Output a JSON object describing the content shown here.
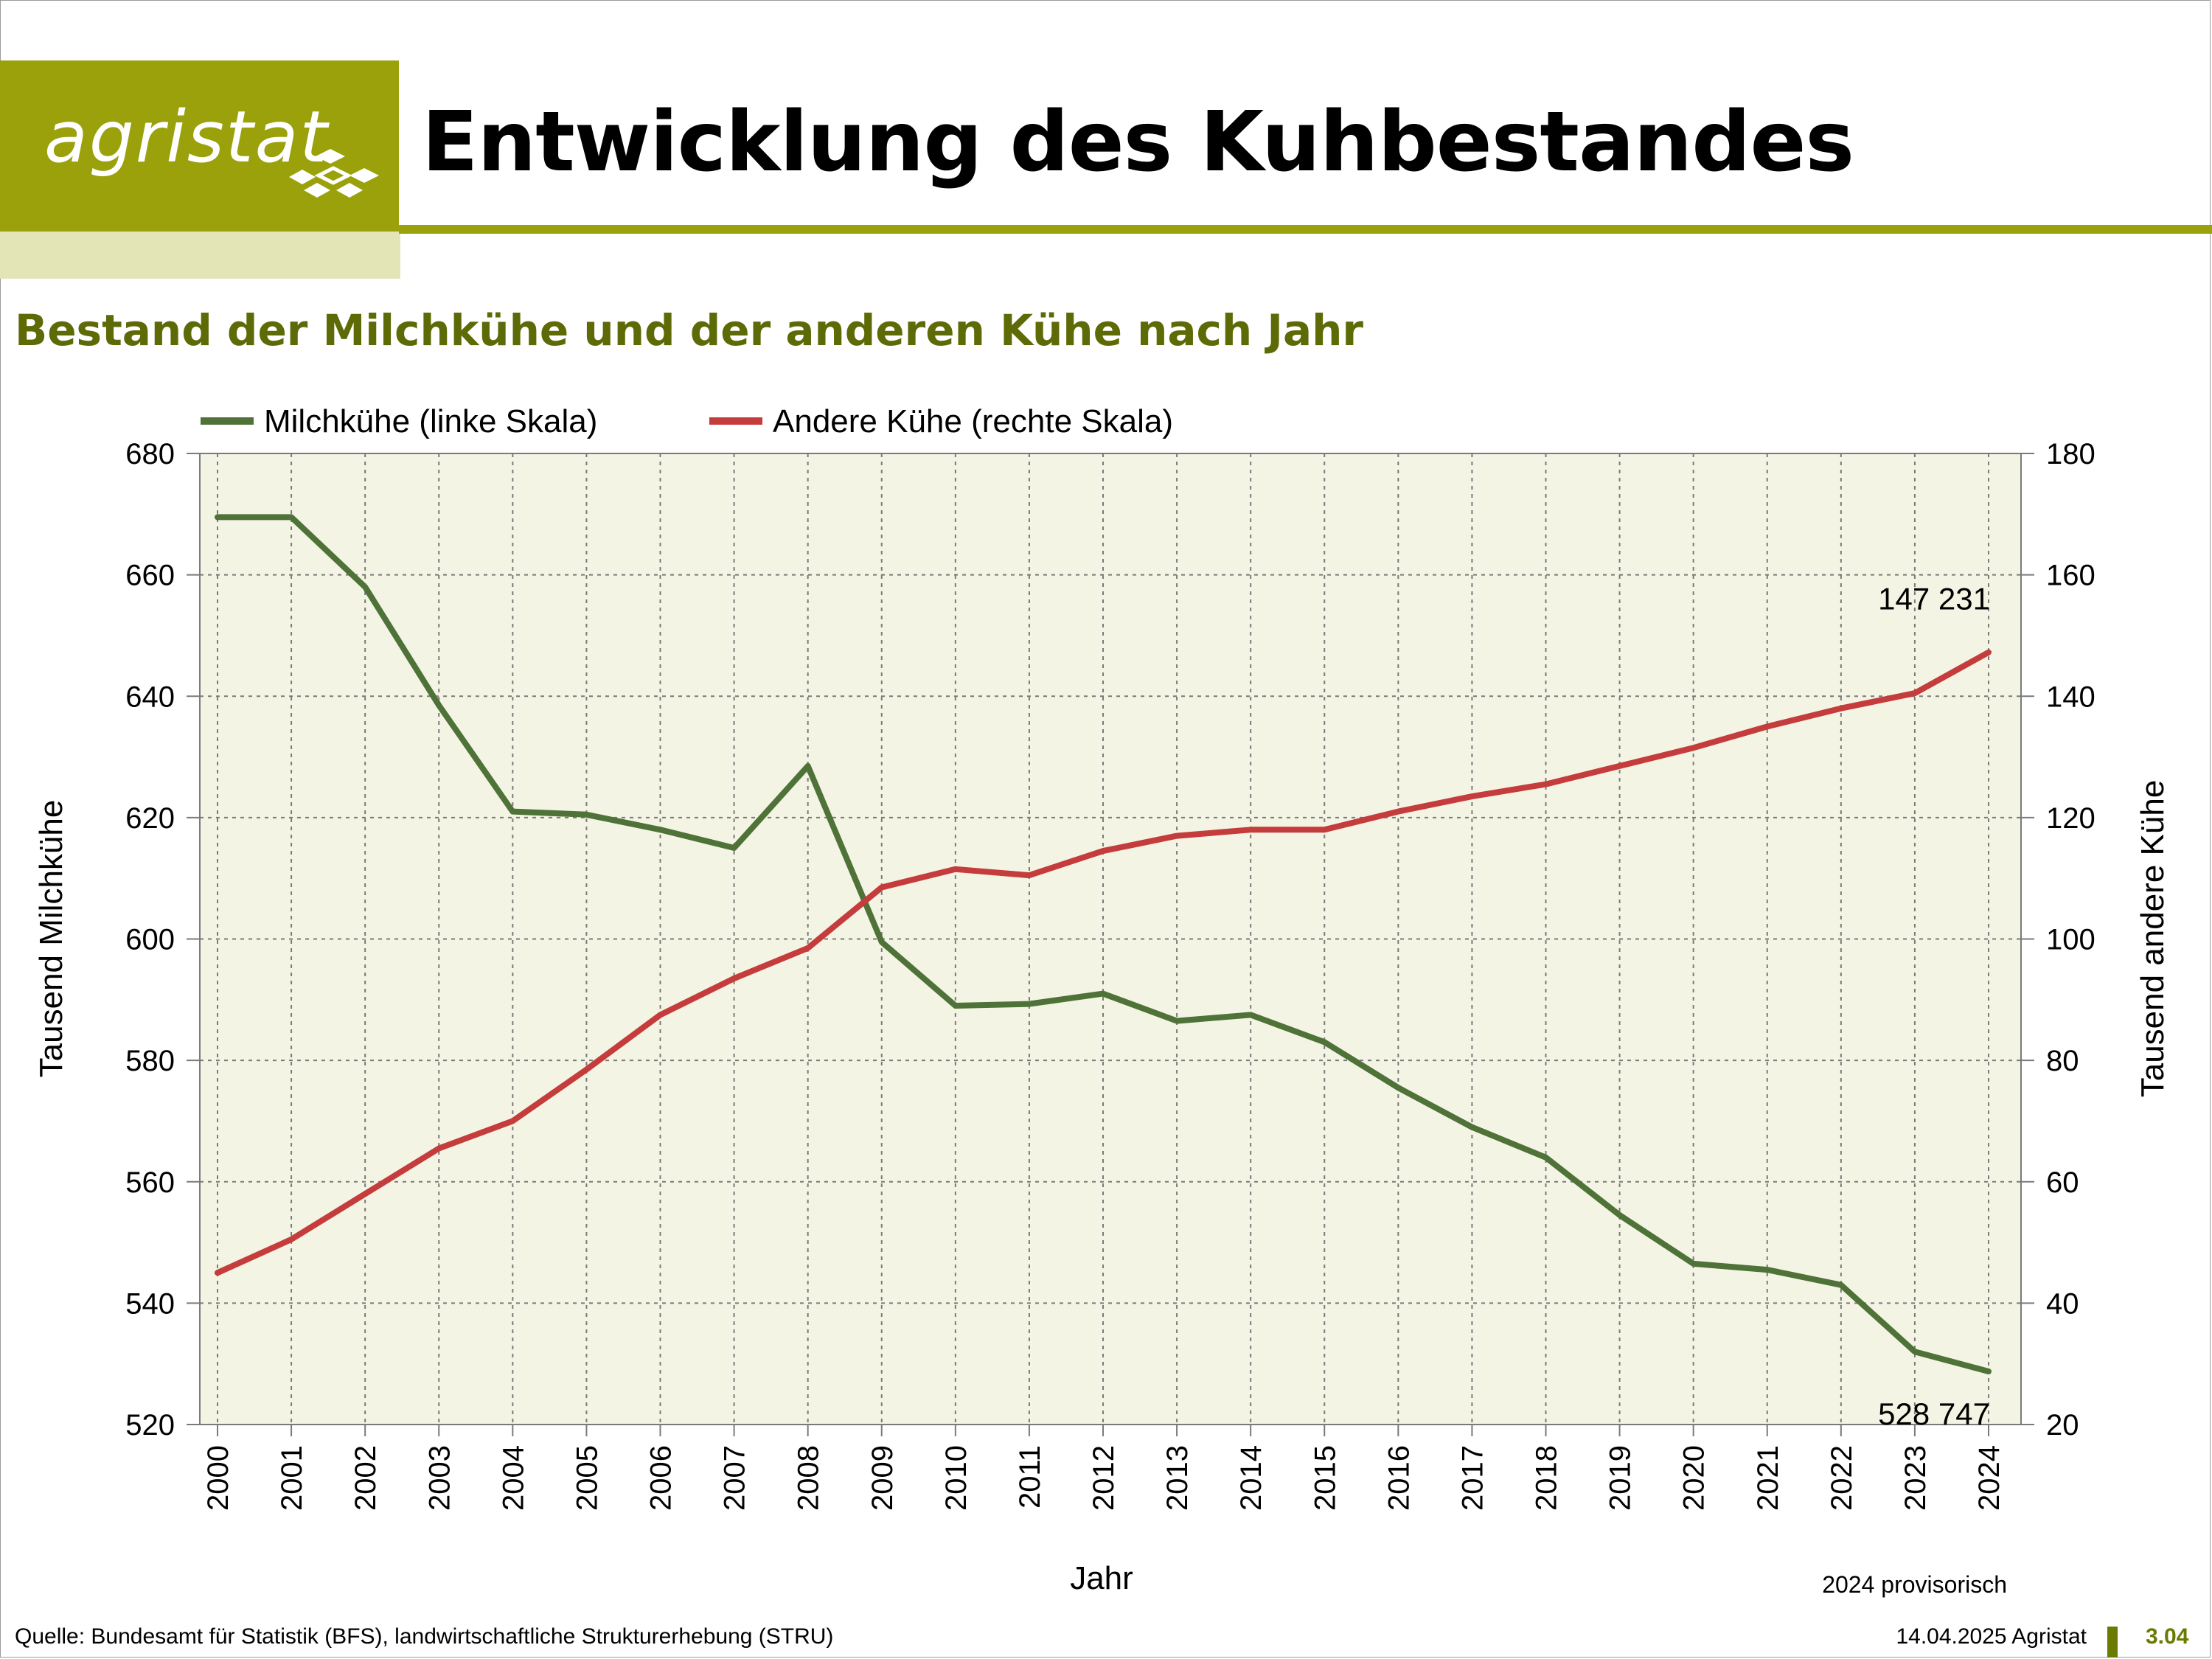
{
  "header": {
    "logo_text": "agristat",
    "title": "Entwicklung des Kuhbestandes",
    "subtitle": "Bestand der Milchkühe und der anderen Kühe nach Jahr"
  },
  "colors": {
    "brand_olive": "#9aa10b",
    "brand_light": "#e3e5b6",
    "subtitle_olive": "#5e6a06",
    "plot_background": "#f4f4e4",
    "milk_cows": "#4e7238",
    "other_cows": "#c43c3c"
  },
  "chart_data": {
    "type": "line",
    "categories": [
      "2000",
      "2001",
      "2002",
      "2003",
      "2004",
      "2005",
      "2006",
      "2007",
      "2008",
      "2009",
      "2010",
      "2011",
      "2012",
      "2013",
      "2014",
      "2015",
      "2016",
      "2017",
      "2018",
      "2019",
      "2020",
      "2021",
      "2022",
      "2023",
      "2024"
    ],
    "series": [
      {
        "name": "Milchkühe (linke Skala)",
        "axis": "left",
        "color": "#4e7238",
        "values": [
          669.5,
          669.5,
          658.0,
          638.5,
          621.0,
          620.5,
          618.0,
          615.0,
          628.5,
          599.5,
          589.0,
          589.3,
          591.0,
          586.5,
          587.5,
          583.0,
          575.5,
          569.0,
          564.0,
          554.5,
          546.5,
          545.5,
          543.0,
          532.0,
          528.747
        ]
      },
      {
        "name": "Andere Kühe (rechte Skala)",
        "axis": "right",
        "color": "#c43c3c",
        "values": [
          45.0,
          50.5,
          58.0,
          65.5,
          70.0,
          78.5,
          87.5,
          93.5,
          98.5,
          108.5,
          111.5,
          110.5,
          114.5,
          117.0,
          118.0,
          118.0,
          121.0,
          123.5,
          125.5,
          128.5,
          131.5,
          135.0,
          138.0,
          140.5,
          147.231
        ]
      }
    ],
    "xlabel": "Jahr",
    "ylabel_left": "Tausend Milchkühe",
    "ylabel_right": "Tausend andere Kühe",
    "ylim_left": [
      520,
      680
    ],
    "ylim_right": [
      20,
      180
    ],
    "yticks_left": [
      "520",
      "540",
      "560",
      "580",
      "600",
      "620",
      "640",
      "660",
      "680"
    ],
    "yticks_right": [
      "20",
      "40",
      "60",
      "80",
      "100",
      "120",
      "140",
      "160",
      "180"
    ],
    "grid": true,
    "legend_placement": "top-left",
    "annotations": [
      {
        "series": "Andere Kühe (rechte Skala)",
        "category": "2024",
        "text": "147 231"
      },
      {
        "series": "Milchkühe (linke Skala)",
        "category": "2024",
        "text": "528 747"
      }
    ],
    "note": "2024 provisorisch"
  },
  "footer": {
    "source": "Quelle: Bundesamt für Statistik (BFS), landwirtschaftliche Strukturerhebung (STRU)",
    "date": "14.04.2025 Agristat",
    "page_number": "3.04"
  }
}
